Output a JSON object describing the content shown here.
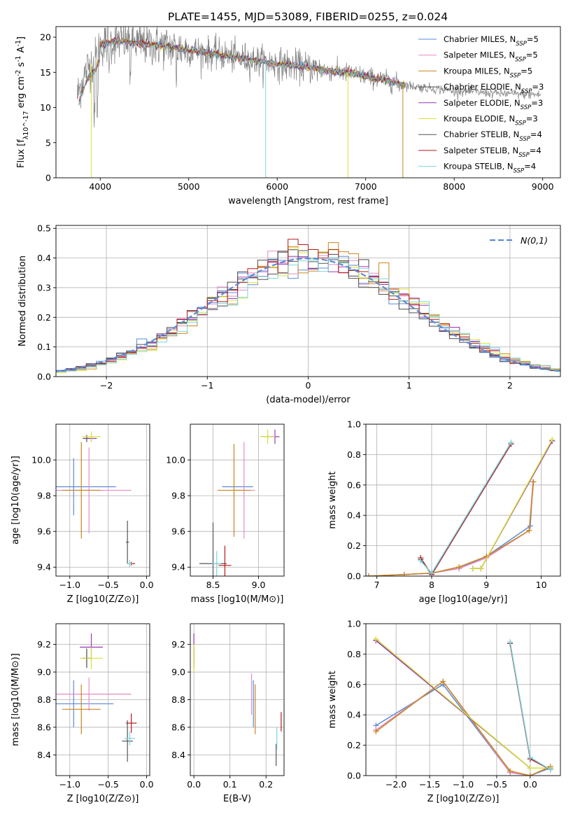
{
  "suptitle": "PLATE=1455, MJD=53089, FIBERID=0255, z=0.024",
  "colors": {
    "Chabrier MILES": "#5b8bd6",
    "Salpeter MILES": "#e58bc8",
    "Kroupa MILES": "#c8861e",
    "Chabrier ELODIE": "#4a4a4a",
    "Salpeter ELODIE": "#9b38b5",
    "Kroupa ELODIE": "#d8e23a",
    "Chabrier STELIB": "#555555",
    "Salpeter STELIB": "#b61a1a",
    "Kroupa STELIB": "#7ad5df",
    "data": "#808080",
    "normal": "#5b8bd6"
  },
  "chart_data": [
    {
      "id": "spectrum",
      "type": "line",
      "xlabel": "wavelength [Angstrom, rest frame]",
      "ylabel": "Flux [f_λ10^-17 erg cm^-2 s^-1 A^-1]",
      "xlim": [
        3500,
        9200
      ],
      "ylim": [
        0,
        21.5
      ],
      "xticks": [
        4000,
        5000,
        6000,
        7000,
        8000,
        9000
      ],
      "yticks": [
        0,
        5,
        10,
        15,
        20
      ],
      "legend": {
        "location": "upper right",
        "entries": [
          {
            "name": "Chabrier MILES",
            "nssp": "5"
          },
          {
            "name": "Salpeter MILES",
            "nssp": "5"
          },
          {
            "name": "Kroupa MILES",
            "nssp": "5"
          },
          {
            "name": "Chabrier ELODIE",
            "nssp": "3"
          },
          {
            "name": "Salpeter ELODIE",
            "nssp": "3"
          },
          {
            "name": "Kroupa ELODIE",
            "nssp": "3"
          },
          {
            "name": "Chabrier STELIB",
            "nssp": "4"
          },
          {
            "name": "Salpeter STELIB",
            "nssp": "4"
          },
          {
            "name": "Kroupa STELIB",
            "nssp": "4"
          }
        ]
      },
      "continuum": {
        "x": [
          3750,
          3850,
          3950,
          4000,
          4200,
          4400,
          4600,
          4800,
          5000,
          5200,
          5500,
          5800,
          6000,
          6300,
          6600,
          6900,
          7200,
          7400,
          7600,
          8000,
          8500,
          9000
        ],
        "y": [
          12,
          15.5,
          17,
          18.8,
          19.5,
          19.2,
          18.9,
          18.6,
          18.2,
          17.8,
          17.2,
          16.6,
          16.2,
          15.8,
          15.2,
          14.7,
          13.9,
          13.3,
          12.9,
          12.4,
          12.0,
          11.8
        ]
      },
      "dropouts": [
        {
          "series": "Kroupa ELODIE",
          "x": 3900
        },
        {
          "series": "Kroupa STELIB",
          "x": 5870
        },
        {
          "series": "Kroupa ELODIE",
          "x": 6800
        },
        {
          "series": "Kroupa MILES",
          "x": 7420
        }
      ]
    },
    {
      "id": "residuals",
      "type": "step",
      "xlabel": "(data-model)/error",
      "ylabel": "Normed distribution",
      "xlim": [
        -2.5,
        2.5
      ],
      "ylim": [
        0,
        0.51
      ],
      "xticks": [
        -2,
        -1,
        0,
        1,
        2
      ],
      "yticks": [
        0.0,
        0.1,
        0.2,
        0.3,
        0.4,
        0.5
      ],
      "bin_width": 0.1,
      "bin_start": -2.5,
      "reference": {
        "name": "N(0,1)",
        "style": "dashed",
        "mu": 0,
        "sigma": 1
      },
      "legend": {
        "location": "upper right"
      }
    },
    {
      "id": "age_vs_Z",
      "type": "errorbar",
      "xlabel": "Z [log10(Z/Z⊙)]",
      "ylabel": "age [log10(age/yr)]",
      "xlim": [
        -1.18,
        0.04
      ],
      "ylim": [
        9.35,
        10.2
      ],
      "xticks": [
        -1.0,
        -0.5,
        0.0
      ],
      "yticks": [
        9.4,
        9.6,
        9.8,
        10.0
      ],
      "points": [
        {
          "series": "Chabrier MILES",
          "x": -0.95,
          "xerr": 0.55,
          "y": 9.85,
          "yerr": 0.16
        },
        {
          "series": "Salpeter MILES",
          "x": -0.75,
          "xerr": 0.55,
          "y": 9.83,
          "yerr": 0.24
        },
        {
          "series": "Kroupa MILES",
          "x": -0.85,
          "xerr": 0.25,
          "y": 9.83,
          "yerr": 0.27
        },
        {
          "series": "Chabrier ELODIE",
          "x": -0.78,
          "xerr": 0.05,
          "y": 10.12,
          "yerr": 0.02
        },
        {
          "series": "Salpeter ELODIE",
          "x": -0.72,
          "xerr": 0.07,
          "y": 10.12,
          "yerr": 0.02
        },
        {
          "series": "Kroupa ELODIE",
          "x": -0.72,
          "xerr": 0.12,
          "y": 10.13,
          "yerr": 0.03
        },
        {
          "series": "Chabrier STELIB",
          "x": -0.25,
          "xerr": 0.02,
          "y": 9.54,
          "yerr": 0.12
        },
        {
          "series": "Salpeter STELIB",
          "x": -0.2,
          "xerr": 0.05,
          "y": 9.42,
          "yerr": 0.01
        },
        {
          "series": "Kroupa STELIB",
          "x": -0.22,
          "xerr": 0.03,
          "y": 9.42,
          "yerr": 0.02
        }
      ]
    },
    {
      "id": "age_vs_mass",
      "type": "errorbar",
      "xlabel": "mass [log10(M/M⊙)]",
      "ylabel": "",
      "xlim": [
        8.25,
        9.28
      ],
      "ylim": [
        9.35,
        10.2
      ],
      "xticks": [
        8.5,
        9.0
      ],
      "yticks": [
        9.4,
        9.6,
        9.8,
        10.0
      ],
      "points": [
        {
          "series": "Chabrier MILES",
          "x": 8.77,
          "xerr": 0.17,
          "y": 9.85,
          "yerr": 0.0
        },
        {
          "series": "Salpeter MILES",
          "x": 8.84,
          "xerr": 0.12,
          "y": 9.83,
          "yerr": 0.27
        },
        {
          "series": "Kroupa MILES",
          "x": 8.73,
          "xerr": 0.18,
          "y": 9.83,
          "yerr": 0.26
        },
        {
          "series": "Chabrier ELODIE",
          "x": 9.1,
          "xerr": 0.07,
          "y": 10.13,
          "yerr": 0.01
        },
        {
          "series": "Salpeter ELODIE",
          "x": 9.18,
          "xerr": 0.05,
          "y": 10.13,
          "yerr": 0.04
        },
        {
          "series": "Kroupa ELODIE",
          "x": 9.1,
          "xerr": 0.08,
          "y": 10.13,
          "yerr": 0.04
        },
        {
          "series": "Chabrier STELIB",
          "x": 8.5,
          "xerr": 0.15,
          "y": 9.42,
          "yerr": 0.23
        },
        {
          "series": "Salpeter STELIB",
          "x": 8.63,
          "xerr": 0.07,
          "y": 9.41,
          "yerr": 0.11
        },
        {
          "series": "Kroupa STELIB",
          "x": 8.54,
          "xerr": 0.05,
          "y": 9.42,
          "yerr": 0.07
        }
      ]
    },
    {
      "id": "mw_vs_age",
      "type": "line",
      "xlabel": "age [log10(age/yr)]",
      "ylabel": "mass weight",
      "xlim": [
        6.8,
        10.35
      ],
      "ylim": [
        0,
        1.0
      ],
      "xticks": [
        7,
        8,
        9,
        10
      ],
      "yticks": [
        0.0,
        0.2,
        0.4,
        0.6,
        0.8,
        1.0
      ],
      "series": [
        {
          "name": "Chabrier MILES",
          "x": [
            6.85,
            7.5,
            8.0,
            8.5,
            9.0,
            9.8,
            9.85
          ],
          "y": [
            0.0,
            0.01,
            0.02,
            0.05,
            0.13,
            0.33,
            0.62
          ]
        },
        {
          "name": "Salpeter MILES",
          "x": [
            6.85,
            7.5,
            8.0,
            8.5,
            9.0,
            9.78,
            9.85
          ],
          "y": [
            0.0,
            0.01,
            0.02,
            0.05,
            0.12,
            0.3,
            0.62
          ]
        },
        {
          "name": "Kroupa MILES",
          "x": [
            6.85,
            7.5,
            8.0,
            8.5,
            9.0,
            9.78,
            9.86
          ],
          "y": [
            0.0,
            0.01,
            0.02,
            0.06,
            0.13,
            0.3,
            0.62
          ]
        },
        {
          "name": "Chabrier ELODIE",
          "x": [
            8.75,
            8.9,
            10.2
          ],
          "y": [
            0.05,
            0.05,
            0.89
          ]
        },
        {
          "name": "Salpeter ELODIE",
          "x": [
            8.75,
            8.9,
            10.2
          ],
          "y": [
            0.05,
            0.05,
            0.89
          ]
        },
        {
          "name": "Kroupa ELODIE",
          "x": [
            8.75,
            8.9,
            10.2
          ],
          "y": [
            0.05,
            0.05,
            0.9
          ]
        },
        {
          "name": "Chabrier STELIB",
          "x": [
            7.8,
            8.0,
            9.45
          ],
          "y": [
            0.11,
            0.01,
            0.87
          ]
        },
        {
          "name": "Salpeter STELIB",
          "x": [
            7.8,
            8.0,
            9.45
          ],
          "y": [
            0.12,
            0.01,
            0.87
          ]
        },
        {
          "name": "Kroupa STELIB",
          "x": [
            7.8,
            8.0,
            9.45
          ],
          "y": [
            0.1,
            0.02,
            0.88
          ]
        }
      ]
    },
    {
      "id": "mass_vs_Z",
      "type": "errorbar",
      "xlabel": "Z [log10(Z/Z⊙)]",
      "ylabel": "mass [log10(M/M⊙)]",
      "xlim": [
        -1.18,
        0.04
      ],
      "ylim": [
        8.25,
        9.35
      ],
      "xticks": [
        -1.0,
        -0.5,
        0.0
      ],
      "yticks": [
        8.4,
        8.6,
        8.8,
        9.0,
        9.2
      ],
      "points": [
        {
          "series": "Chabrier MILES",
          "x": -0.95,
          "xerr": 0.52,
          "y": 8.77,
          "yerr": 0.17
        },
        {
          "series": "Salpeter MILES",
          "x": -0.75,
          "xerr": 0.55,
          "y": 8.84,
          "yerr": 0.12
        },
        {
          "series": "Kroupa MILES",
          "x": -0.85,
          "xerr": 0.25,
          "y": 8.73,
          "yerr": 0.18
        },
        {
          "series": "Chabrier ELODIE",
          "x": -0.78,
          "xerr": 0.05,
          "y": 9.1,
          "yerr": 0.07
        },
        {
          "series": "Salpeter ELODIE",
          "x": -0.72,
          "xerr": 0.15,
          "y": 9.18,
          "yerr": 0.1
        },
        {
          "series": "Kroupa ELODIE",
          "x": -0.72,
          "xerr": 0.15,
          "y": 9.1,
          "yerr": 0.08
        },
        {
          "series": "Chabrier STELIB",
          "x": -0.25,
          "xerr": 0.07,
          "y": 8.5,
          "yerr": 0.15
        },
        {
          "series": "Salpeter STELIB",
          "x": -0.2,
          "xerr": 0.07,
          "y": 8.63,
          "yerr": 0.07
        },
        {
          "series": "Kroupa STELIB",
          "x": -0.22,
          "xerr": 0.07,
          "y": 8.52,
          "yerr": 0.05
        }
      ]
    },
    {
      "id": "mass_vs_ebv",
      "type": "errorbar",
      "xlabel": "E(B-V)",
      "ylabel": "",
      "xlim": [
        -0.01,
        0.25
      ],
      "ylim": [
        8.25,
        9.35
      ],
      "xticks": [
        0.0,
        0.1,
        0.2
      ],
      "yticks": [
        8.4,
        8.6,
        8.8,
        9.0,
        9.2
      ],
      "points": [
        {
          "series": "Chabrier MILES",
          "x": 0.165,
          "y": 8.77,
          "yerr": 0.17
        },
        {
          "series": "Salpeter MILES",
          "x": 0.16,
          "y": 8.84,
          "yerr": 0.15
        },
        {
          "series": "Kroupa MILES",
          "x": 0.17,
          "y": 8.73,
          "yerr": 0.18
        },
        {
          "series": "Chabrier ELODIE",
          "x": 0.0,
          "y": 9.1,
          "yerr": 0.07
        },
        {
          "series": "Salpeter ELODIE",
          "x": 0.0,
          "y": 9.18,
          "yerr": 0.1
        },
        {
          "series": "Kroupa ELODIE",
          "x": 0.0,
          "y": 9.1,
          "yerr": 0.1
        },
        {
          "series": "Chabrier STELIB",
          "x": 0.228,
          "y": 8.4,
          "yerr": 0.08
        },
        {
          "series": "Salpeter STELIB",
          "x": 0.242,
          "y": 8.64,
          "yerr": 0.07
        },
        {
          "series": "Kroupa STELIB",
          "x": 0.23,
          "y": 8.52,
          "yerr": 0.08
        }
      ]
    },
    {
      "id": "mw_vs_Z",
      "type": "line",
      "xlabel": "Z [log10(Z/Z⊙)]",
      "ylabel": "mass weight",
      "xlim": [
        -2.45,
        0.45
      ],
      "ylim": [
        0,
        1.0
      ],
      "xticks": [
        -2.0,
        -1.5,
        -1.0,
        -0.5,
        0.0
      ],
      "yticks": [
        0.0,
        0.2,
        0.4,
        0.6,
        0.8,
        1.0
      ],
      "series": [
        {
          "name": "Chabrier MILES",
          "x": [
            -2.3,
            -1.3,
            -0.3,
            0.0,
            0.3
          ],
          "y": [
            0.33,
            0.6,
            0.02,
            0.0,
            0.05
          ]
        },
        {
          "name": "Salpeter MILES",
          "x": [
            -2.3,
            -1.3,
            -0.3,
            0.0,
            0.3
          ],
          "y": [
            0.3,
            0.62,
            0.02,
            0.0,
            0.06
          ]
        },
        {
          "name": "Kroupa MILES",
          "x": [
            -2.3,
            -1.3,
            -0.3,
            0.0,
            0.3
          ],
          "y": [
            0.29,
            0.62,
            0.03,
            0.0,
            0.06
          ]
        },
        {
          "name": "Chabrier ELODIE",
          "x": [
            -2.3,
            0.0,
            0.3
          ],
          "y": [
            0.89,
            0.05,
            0.05
          ]
        },
        {
          "name": "Salpeter ELODIE",
          "x": [
            -2.3,
            0.0,
            0.3
          ],
          "y": [
            0.89,
            0.05,
            0.05
          ]
        },
        {
          "name": "Kroupa ELODIE",
          "x": [
            -2.3,
            0.0,
            0.3
          ],
          "y": [
            0.9,
            0.05,
            0.05
          ]
        },
        {
          "name": "Chabrier STELIB",
          "x": [
            -0.3,
            0.0,
            0.3
          ],
          "y": [
            0.87,
            0.11,
            0.04
          ]
        },
        {
          "name": "Salpeter STELIB",
          "x": [
            -0.3,
            0.0,
            0.3
          ],
          "y": [
            0.87,
            0.11,
            0.04
          ]
        },
        {
          "name": "Kroupa STELIB",
          "x": [
            -0.3,
            0.0,
            0.3
          ],
          "y": [
            0.88,
            0.12,
            0.04
          ]
        }
      ]
    }
  ]
}
